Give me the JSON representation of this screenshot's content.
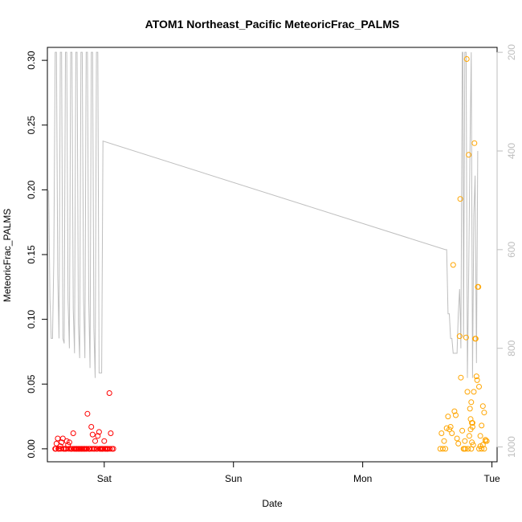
{
  "chart_data": {
    "type": "scatter",
    "title": "ATOM1 Northeast_Pacific MeteoricFrac_PALMS",
    "xlabel": "Date",
    "ylabel": "MeteoricFrac_PALMS",
    "x_ticks": [
      "Sat",
      "Sun",
      "Mon",
      "Tue"
    ],
    "x_tick_days": [
      1.0,
      2.0,
      3.0,
      4.0
    ],
    "xlim": [
      0.56,
      4.04
    ],
    "ylim": [
      -0.01,
      0.31
    ],
    "y_ticks": [
      "0.00",
      "0.05",
      "0.10",
      "0.15",
      "0.20",
      "0.25",
      "0.30"
    ],
    "y_tick_values": [
      0,
      0.05,
      0.1,
      0.15,
      0.2,
      0.25,
      0.3
    ],
    "y2_ticks": [
      "200",
      "400",
      "600",
      "800",
      "1000"
    ],
    "y2_tick_values": [
      200,
      400,
      600,
      800,
      1000
    ],
    "y2lim": [
      1030,
      190
    ],
    "grid": false,
    "series": [
      {
        "color": "#ff0000",
        "marker": "open-circle",
        "points": [
          [
            0.62,
            0
          ],
          [
            0.63,
            0.004
          ],
          [
            0.64,
            0.008
          ],
          [
            0.65,
            0
          ],
          [
            0.66,
            0.002
          ],
          [
            0.67,
            0.005
          ],
          [
            0.68,
            0.008
          ],
          [
            0.69,
            0
          ],
          [
            0.7,
            0
          ],
          [
            0.71,
            0.006
          ],
          [
            0.72,
            0.003
          ],
          [
            0.73,
            0.005
          ],
          [
            0.74,
            0
          ],
          [
            0.75,
            0
          ],
          [
            0.76,
            0.012
          ],
          [
            0.77,
            0
          ],
          [
            0.78,
            0
          ],
          [
            0.79,
            0
          ],
          [
            0.8,
            0
          ],
          [
            0.81,
            0
          ],
          [
            0.82,
            0
          ],
          [
            0.83,
            0
          ],
          [
            0.84,
            0
          ],
          [
            0.85,
            0
          ],
          [
            0.86,
            0
          ],
          [
            0.87,
            0.027
          ],
          [
            0.88,
            0
          ],
          [
            0.89,
            0
          ],
          [
            0.9,
            0.017
          ],
          [
            0.91,
            0.011
          ],
          [
            0.92,
            0
          ],
          [
            0.93,
            0.006
          ],
          [
            0.94,
            0
          ],
          [
            0.95,
            0.01
          ],
          [
            0.96,
            0.013
          ],
          [
            0.97,
            0
          ],
          [
            0.98,
            0
          ],
          [
            0.99,
            0
          ],
          [
            1.0,
            0.006
          ],
          [
            1.01,
            0
          ],
          [
            1.02,
            0
          ],
          [
            1.03,
            0
          ],
          [
            1.04,
            0.043
          ],
          [
            1.05,
            0.012
          ],
          [
            1.06,
            0
          ],
          [
            1.07,
            0
          ],
          [
            0.625,
            0
          ],
          [
            0.645,
            0
          ],
          [
            0.665,
            0
          ],
          [
            0.685,
            0
          ],
          [
            0.705,
            0
          ],
          [
            0.725,
            0
          ],
          [
            0.745,
            0
          ],
          [
            0.765,
            0
          ],
          [
            0.785,
            0
          ],
          [
            0.805,
            0
          ],
          [
            0.825,
            0
          ],
          [
            0.845,
            0
          ],
          [
            0.865,
            0
          ],
          [
            0.885,
            0
          ],
          [
            0.905,
            0
          ],
          [
            0.925,
            0
          ],
          [
            0.945,
            0
          ],
          [
            0.965,
            0
          ],
          [
            0.985,
            0
          ],
          [
            1.005,
            0
          ],
          [
            1.025,
            0
          ],
          [
            1.045,
            0
          ]
        ]
      },
      {
        "color": "#ffa500",
        "marker": "open-circle",
        "points": [
          [
            3.6,
            0
          ],
          [
            3.61,
            0.012
          ],
          [
            3.62,
            0
          ],
          [
            3.63,
            0.006
          ],
          [
            3.64,
            0
          ],
          [
            3.65,
            0.016
          ],
          [
            3.66,
            0.025
          ],
          [
            3.67,
            0.015
          ],
          [
            3.68,
            0.017
          ],
          [
            3.69,
            0.012
          ],
          [
            3.7,
            0.142
          ],
          [
            3.71,
            0.029
          ],
          [
            3.72,
            0.026
          ],
          [
            3.73,
            0.008
          ],
          [
            3.74,
            0.004
          ],
          [
            3.75,
            0.087
          ],
          [
            3.755,
            0.193
          ],
          [
            3.76,
            0.055
          ],
          [
            3.77,
            0.014
          ],
          [
            3.78,
            0
          ],
          [
            3.79,
            0.006
          ],
          [
            3.8,
            0.086
          ],
          [
            3.805,
            0.301
          ],
          [
            3.81,
            0.044
          ],
          [
            3.82,
            0.227
          ],
          [
            3.83,
            0.031
          ],
          [
            3.84,
            0.036
          ],
          [
            3.85,
            0.02
          ],
          [
            3.86,
            0.044
          ],
          [
            3.865,
            0.236
          ],
          [
            3.87,
            0.085
          ],
          [
            3.875,
            0.085
          ],
          [
            3.88,
            0.056
          ],
          [
            3.885,
            0.053
          ],
          [
            3.89,
            0.125
          ],
          [
            3.895,
            0.125
          ],
          [
            3.9,
            0.048
          ],
          [
            3.91,
            0.01
          ],
          [
            3.92,
            0.018
          ],
          [
            3.93,
            0.033
          ],
          [
            3.94,
            0.028
          ],
          [
            3.95,
            0.007
          ],
          [
            3.96,
            0.006
          ],
          [
            3.785,
            0
          ],
          [
            3.795,
            0
          ],
          [
            3.815,
            0
          ],
          [
            3.825,
            0.01
          ],
          [
            3.835,
            0.015
          ],
          [
            3.845,
            0.005
          ],
          [
            3.855,
            0.003
          ],
          [
            3.9,
            0
          ],
          [
            3.91,
            0.002
          ],
          [
            3.92,
            0
          ],
          [
            3.93,
            0.003
          ],
          [
            3.94,
            0
          ],
          [
            3.95,
            0.006
          ],
          [
            3.845,
            0.02
          ],
          [
            3.835,
            0.023
          ],
          [
            3.85,
            0.017
          ],
          [
            3.84,
            0
          ]
        ]
      }
    ],
    "line_series": {
      "color": "#bebebe",
      "axis": "right",
      "points": [
        [
          0.57,
          480
        ],
        [
          0.58,
          700
        ],
        [
          0.59,
          780
        ],
        [
          0.6,
          780
        ],
        [
          0.61,
          620
        ],
        [
          0.62,
          200
        ],
        [
          0.63,
          200
        ],
        [
          0.64,
          650
        ],
        [
          0.65,
          780
        ],
        [
          0.66,
          200
        ],
        [
          0.67,
          200
        ],
        [
          0.68,
          780
        ],
        [
          0.69,
          790
        ],
        [
          0.7,
          200
        ],
        [
          0.71,
          200
        ],
        [
          0.72,
          700
        ],
        [
          0.73,
          800
        ],
        [
          0.74,
          200
        ],
        [
          0.75,
          200
        ],
        [
          0.76,
          720
        ],
        [
          0.77,
          810
        ],
        [
          0.78,
          200
        ],
        [
          0.79,
          200
        ],
        [
          0.8,
          750
        ],
        [
          0.81,
          820
        ],
        [
          0.82,
          200
        ],
        [
          0.83,
          200
        ],
        [
          0.84,
          700
        ],
        [
          0.85,
          820
        ],
        [
          0.86,
          200
        ],
        [
          0.87,
          200
        ],
        [
          0.88,
          700
        ],
        [
          0.89,
          840
        ],
        [
          0.9,
          200
        ],
        [
          0.91,
          200
        ],
        [
          0.92,
          760
        ],
        [
          0.93,
          860
        ],
        [
          0.94,
          200
        ],
        [
          0.95,
          200
        ],
        [
          0.96,
          850
        ],
        [
          0.97,
          850
        ],
        [
          0.98,
          850
        ],
        [
          0.99,
          380
        ],
        [
          3.64,
          600
        ],
        [
          3.65,
          600
        ],
        [
          3.66,
          730
        ],
        [
          3.67,
          730
        ],
        [
          3.68,
          780
        ],
        [
          3.69,
          780
        ],
        [
          3.7,
          810
        ],
        [
          3.71,
          810
        ],
        [
          3.72,
          810
        ],
        [
          3.73,
          810
        ],
        [
          3.74,
          730
        ],
        [
          3.75,
          680
        ],
        [
          3.755,
          730
        ],
        [
          3.76,
          800
        ],
        [
          3.77,
          200
        ],
        [
          3.775,
          200
        ],
        [
          3.78,
          780
        ],
        [
          3.79,
          200
        ],
        [
          3.8,
          200
        ],
        [
          3.81,
          860
        ],
        [
          3.82,
          650
        ],
        [
          3.83,
          400
        ],
        [
          3.84,
          200
        ],
        [
          3.85,
          860
        ],
        [
          3.86,
          530
        ],
        [
          3.87,
          450
        ],
        [
          3.88,
          830
        ],
        [
          3.89,
          400
        ]
      ]
    }
  }
}
